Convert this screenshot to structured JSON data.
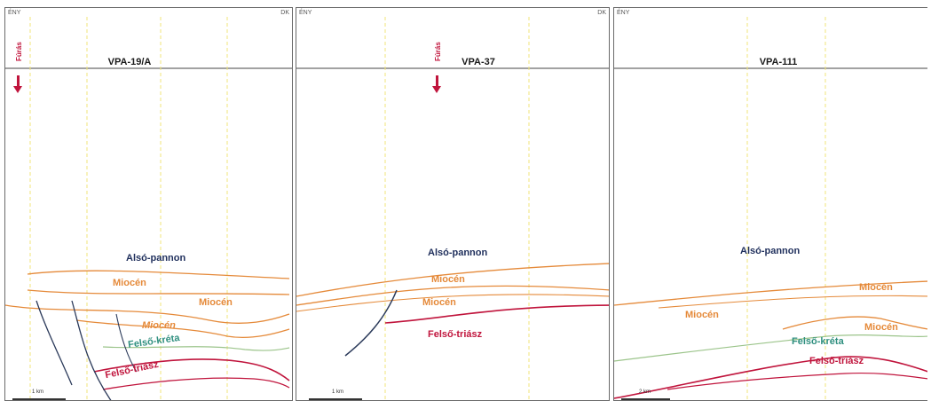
{
  "panels": [
    {
      "title": "VPA-19/A",
      "corner_left": "ÉNY",
      "corner_right": "DK",
      "has_furas": true,
      "furas_label": "Fúrás",
      "scale_label": "1 km",
      "units": {
        "also_pannon": "Alsó-pannon",
        "miocen_1": "Miocén",
        "miocen_2": "Miocén",
        "miocen_3": "Miocén",
        "felso_kreta": "Felső-kréta",
        "felso_triasz": "Felső-triász"
      }
    },
    {
      "title": "VPA-37",
      "corner_left": "ÉNY",
      "corner_right": "DK",
      "has_furas": true,
      "furas_label": "Fúrás",
      "scale_label": "1 km",
      "units": {
        "also_pannon": "Alsó-pannon",
        "miocen_1": "Miocén",
        "miocen_2": "Miocén",
        "felso_triasz": "Felső-triász"
      }
    },
    {
      "title": "VPA-111",
      "corner_left": "ÉNY",
      "scale_label": "2 km",
      "units": {
        "also_pannon": "Alsó-pannon",
        "miocen_1": "Miocén",
        "miocen_2": "Miocén",
        "miocen_3": "Miocén",
        "felso_kreta": "Felső-kréta",
        "felso_triasz": "Felső-triász"
      }
    }
  ],
  "colors": {
    "also_pannon": "#1f2f5c",
    "miocen": "#e58a3a",
    "felso_kreta": "#2f8f7f",
    "felso_triasz": "#c0143c",
    "well_line": "#f0e57a",
    "fault": "#2b3a5a"
  }
}
